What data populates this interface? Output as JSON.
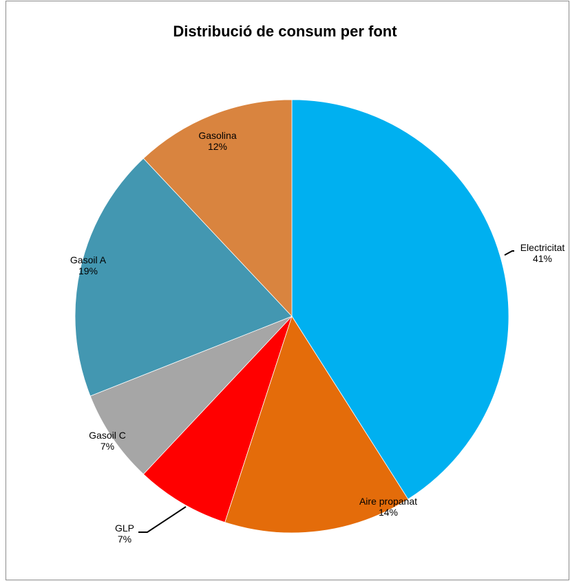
{
  "chart_data": {
    "type": "pie",
    "title": "Distribució de consum per font",
    "slices": [
      {
        "name": "Electricitat",
        "value": 41,
        "label": "41%",
        "color": "#00B0F0"
      },
      {
        "name": "Aire propanat",
        "value": 14,
        "label": "14%",
        "color": "#E46C0A"
      },
      {
        "name": "GLP",
        "value": 7,
        "label": "7%",
        "color": "#FF0000"
      },
      {
        "name": "Gasoil C",
        "value": 7,
        "label": "7%",
        "color": "#A6A6A6"
      },
      {
        "name": "Gasoil A",
        "value": 19,
        "label": "19%",
        "color": "#4397B1"
      },
      {
        "name": "Gasolina",
        "value": 12,
        "label": "12%",
        "color": "#D9843F"
      }
    ],
    "start_angle": "12 o'clock",
    "direction": "clockwise",
    "legend": "none",
    "data_labels": "category name and percentage"
  }
}
